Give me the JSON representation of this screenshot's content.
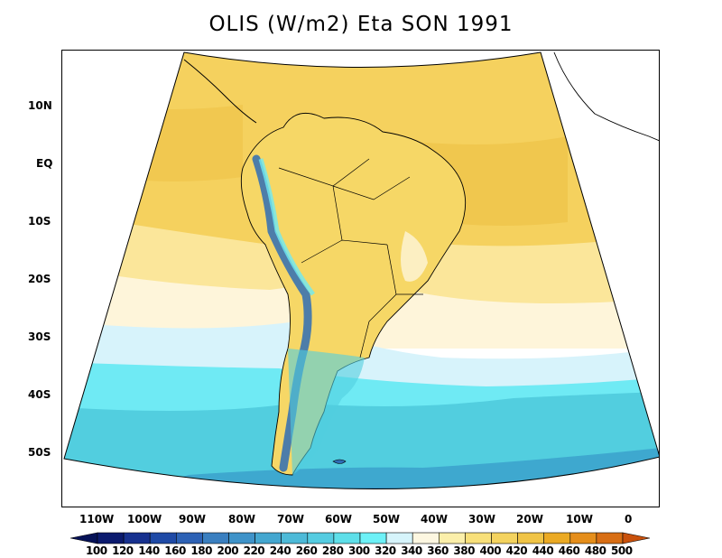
{
  "title": "OLIS (W/m2) Eta SON 1991",
  "lat_labels": [
    "10N",
    "EQ",
    "10S",
    "20S",
    "30S",
    "40S",
    "50S"
  ],
  "lon_labels": [
    "110W",
    "100W",
    "90W",
    "80W",
    "70W",
    "60W",
    "50W",
    "40W",
    "30W",
    "20W",
    "10W",
    "0"
  ],
  "colorbar": {
    "levels": [
      "100",
      "120",
      "140",
      "160",
      "180",
      "200",
      "220",
      "240",
      "260",
      "280",
      "300",
      "320",
      "340",
      "360",
      "380",
      "400",
      "420",
      "440",
      "460",
      "480",
      "500"
    ],
    "colors": [
      "#0b1a6e",
      "#17318f",
      "#1f4aa6",
      "#2d62b5",
      "#3a7fc0",
      "#3f93c9",
      "#44a7d0",
      "#4dbad8",
      "#55cce1",
      "#5edfe9",
      "#6df1f7",
      "#d6f4fb",
      "#fdf7e1",
      "#fbefaa",
      "#f8e07a",
      "#f4d35f",
      "#f0c446",
      "#ebaa24",
      "#e58e1b",
      "#d86e14"
    ],
    "under_color": "#061257",
    "over_color": "#c9510c"
  },
  "map_colors": {
    "tropics": "#f5d15e",
    "tropics_dark": "#efc44a",
    "subtropics": "#fbe69a",
    "pale": "#fef5da",
    "cool": "#d7f3fb",
    "cyan": "#6feaf4",
    "teal": "#52cedf",
    "blue": "#3ea8cf",
    "andes": "#2f6db5"
  }
}
